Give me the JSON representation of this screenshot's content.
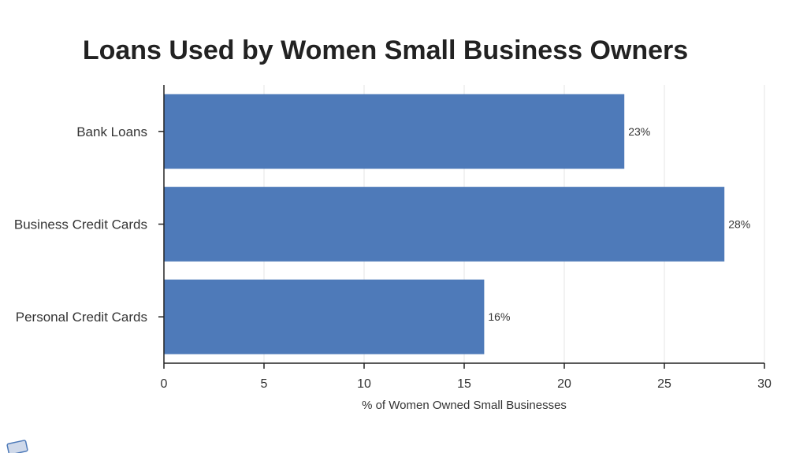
{
  "chart_data": {
    "type": "bar",
    "orientation": "horizontal",
    "title": "Loans Used by Women Small Business Owners",
    "xlabel": "% of Women Owned Small Businesses",
    "ylabel": "",
    "categories": [
      "Bank Loans",
      "Business Credit Cards",
      "Personal Credit Cards"
    ],
    "values": [
      23,
      28,
      16
    ],
    "data_labels": [
      "23%",
      "28%",
      "16%"
    ],
    "xlim": [
      0,
      30
    ],
    "xticks": [
      0,
      5,
      10,
      15,
      20,
      25,
      30
    ],
    "grid": true,
    "bar_color": "#4e7ab9"
  }
}
